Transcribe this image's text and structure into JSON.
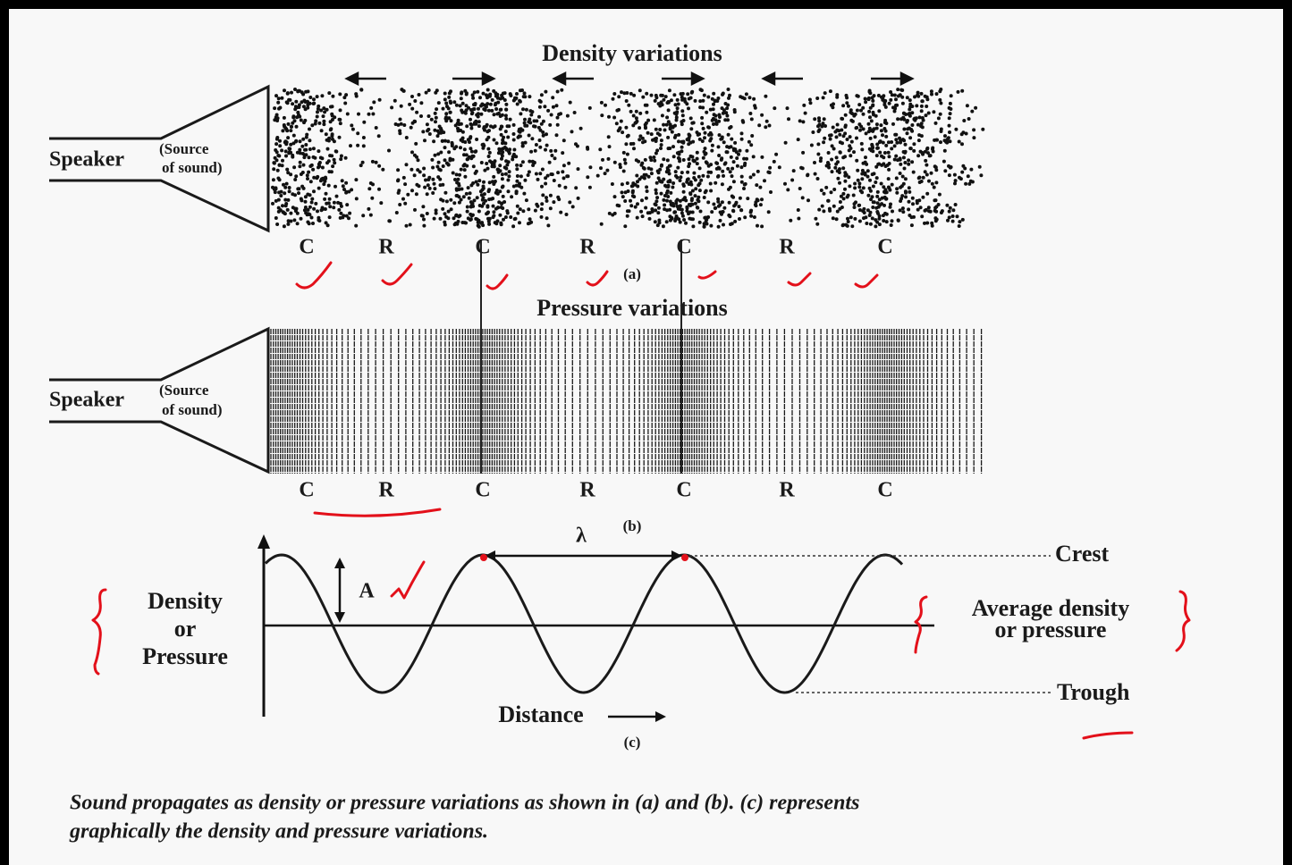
{
  "panel_a": {
    "title": "Density variations",
    "speaker": "Speaker",
    "source": [
      "(Source",
      "of sound)"
    ],
    "labels": [
      "C",
      "R",
      "C",
      "R",
      "C",
      "R",
      "C"
    ],
    "tag": "(a)"
  },
  "panel_b": {
    "title": "Pressure variations",
    "speaker": "Speaker",
    "source": [
      "(Source",
      "of sound)"
    ],
    "labels": [
      "C",
      "R",
      "C",
      "R",
      "C",
      "R",
      "C"
    ],
    "tag": "(b)"
  },
  "panel_c": {
    "y_label": [
      "Density",
      "or",
      "Pressure"
    ],
    "wavelength": "λ",
    "amplitude": "A",
    "crest": "Crest",
    "average": [
      "Average density",
      "or pressure"
    ],
    "trough": "Trough",
    "x_label": "Distance",
    "tag": "(c)"
  },
  "caption": [
    "Sound propagates as density or pressure variations as shown in (a) and (b). (c) represents",
    "graphically the density and pressure variations."
  ]
}
